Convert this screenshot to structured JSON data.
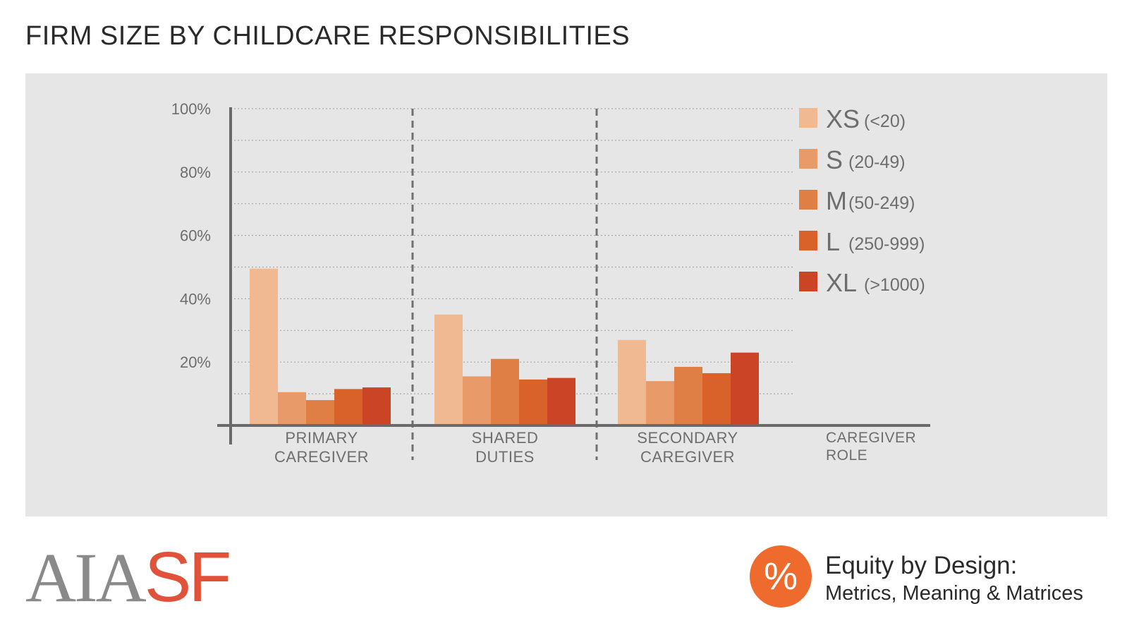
{
  "page": {
    "title": "FIRM SIZE BY CHILDCARE RESPONSIBILITIES"
  },
  "chart_data": {
    "type": "bar",
    "title": "FIRM SIZE BY CHILDCARE RESPONSIBILITIES",
    "xlabel": "CAREGIVER ROLE",
    "ylabel": "",
    "ylim": [
      0,
      100
    ],
    "yticks": [
      20,
      40,
      60,
      80,
      100
    ],
    "ytick_labels": [
      "20%",
      "40%",
      "60%",
      "80%",
      "100%"
    ],
    "grid": true,
    "legend_position": "right",
    "categories": [
      "PRIMARY CAREGIVER",
      "SHARED DUTIES",
      "SECONDARY CAREGIVER"
    ],
    "category_lines": [
      [
        "PRIMARY",
        "CAREGIVER"
      ],
      [
        "SHARED",
        "DUTIES"
      ],
      [
        "SECONDARY",
        "CAREGIVER"
      ]
    ],
    "xlabel_lines": [
      "CAREGIVER",
      "ROLE"
    ],
    "series": [
      {
        "name": "XS",
        "range": "(<20)",
        "color": "#f0b992",
        "values": [
          49.5,
          35,
          27
        ]
      },
      {
        "name": "S",
        "range": "(20-49)",
        "color": "#e89a69",
        "values": [
          10.5,
          15.5,
          14
        ]
      },
      {
        "name": "M",
        "range": "(50-249)",
        "color": "#e07f45",
        "values": [
          8,
          21,
          18.5
        ]
      },
      {
        "name": "L",
        "range": "(250-999)",
        "color": "#d9622a",
        "values": [
          11.5,
          14.5,
          16.5
        ]
      },
      {
        "name": "XL",
        "range": "(>1000)",
        "color": "#cb4425",
        "values": [
          12,
          15,
          23
        ]
      }
    ]
  },
  "branding": {
    "logo_text_gray": "AIA",
    "logo_text_red": "SF",
    "logo_gray": "#8a8a8a",
    "logo_red": "#e0533a",
    "badge_symbol": "%",
    "badge_color": "#ee6a2d",
    "title": "Equity by Design:",
    "subtitle": "Metrics, Meaning & Matrices"
  }
}
